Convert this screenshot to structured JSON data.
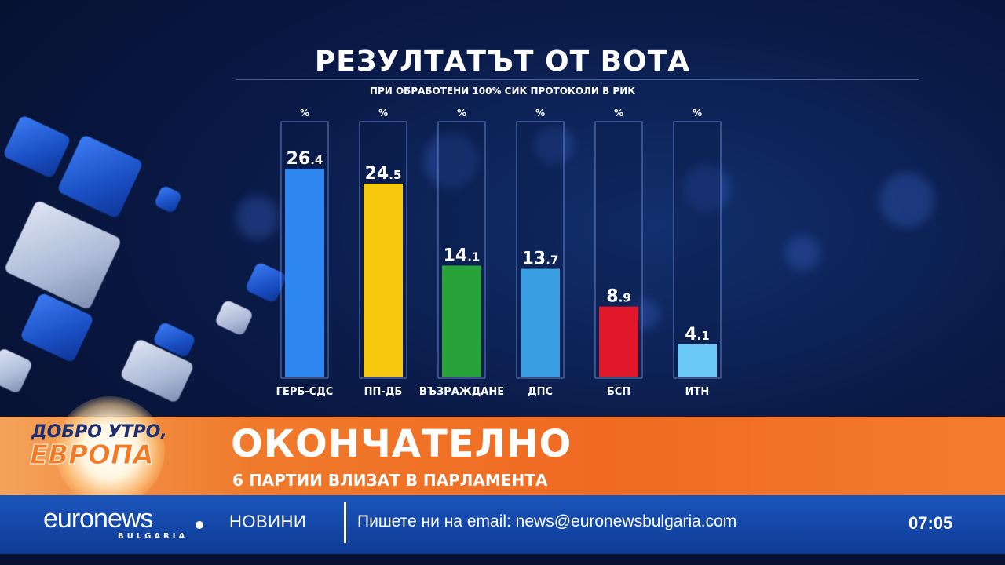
{
  "chart_data": {
    "type": "bar",
    "title": "РЕЗУЛТАТЪТ ОТ ВОТА",
    "subtitle": "ПРИ ОБРАБОТЕНИ 100% СИК ПРОТОКОЛИ В РИК",
    "unit": "%",
    "ylim": [
      0,
      30
    ],
    "categories": [
      "ГЕРБ-СДС",
      "ПП-ДБ",
      "ВЪЗРАЖДАНЕ",
      "ДПС",
      "БСП",
      "ИТН"
    ],
    "values": [
      26.4,
      24.5,
      14.1,
      13.7,
      8.9,
      4.1
    ],
    "value_labels": [
      {
        "int": "26",
        "dec": ".4"
      },
      {
        "int": "24",
        "dec": ".5"
      },
      {
        "int": "14",
        "dec": ".1"
      },
      {
        "int": "13",
        "dec": ".7"
      },
      {
        "int": "8",
        "dec": ".9"
      },
      {
        "int": "4",
        "dec": ".1"
      }
    ],
    "colors": [
      "#2e86f0",
      "#f6c80e",
      "#27a33a",
      "#3a9ee2",
      "#e0182a",
      "#6cc8f7"
    ]
  },
  "lower_third": {
    "show_name_top": "ДОБРО УТРО,",
    "show_name_bottom": "ЕВРОПА",
    "headline": "ОКОНЧАТЕЛНО",
    "subheadline": "6 ПАРТИИ ВЛИЗАТ В ПАРЛАМЕНТА"
  },
  "ticker": {
    "logo": "euronews",
    "logo_sub": "BULGARIA",
    "section": "НОВИНИ",
    "text": "Пишете ни на email: news@euronewsbulgaria.com",
    "time": "07:05"
  }
}
